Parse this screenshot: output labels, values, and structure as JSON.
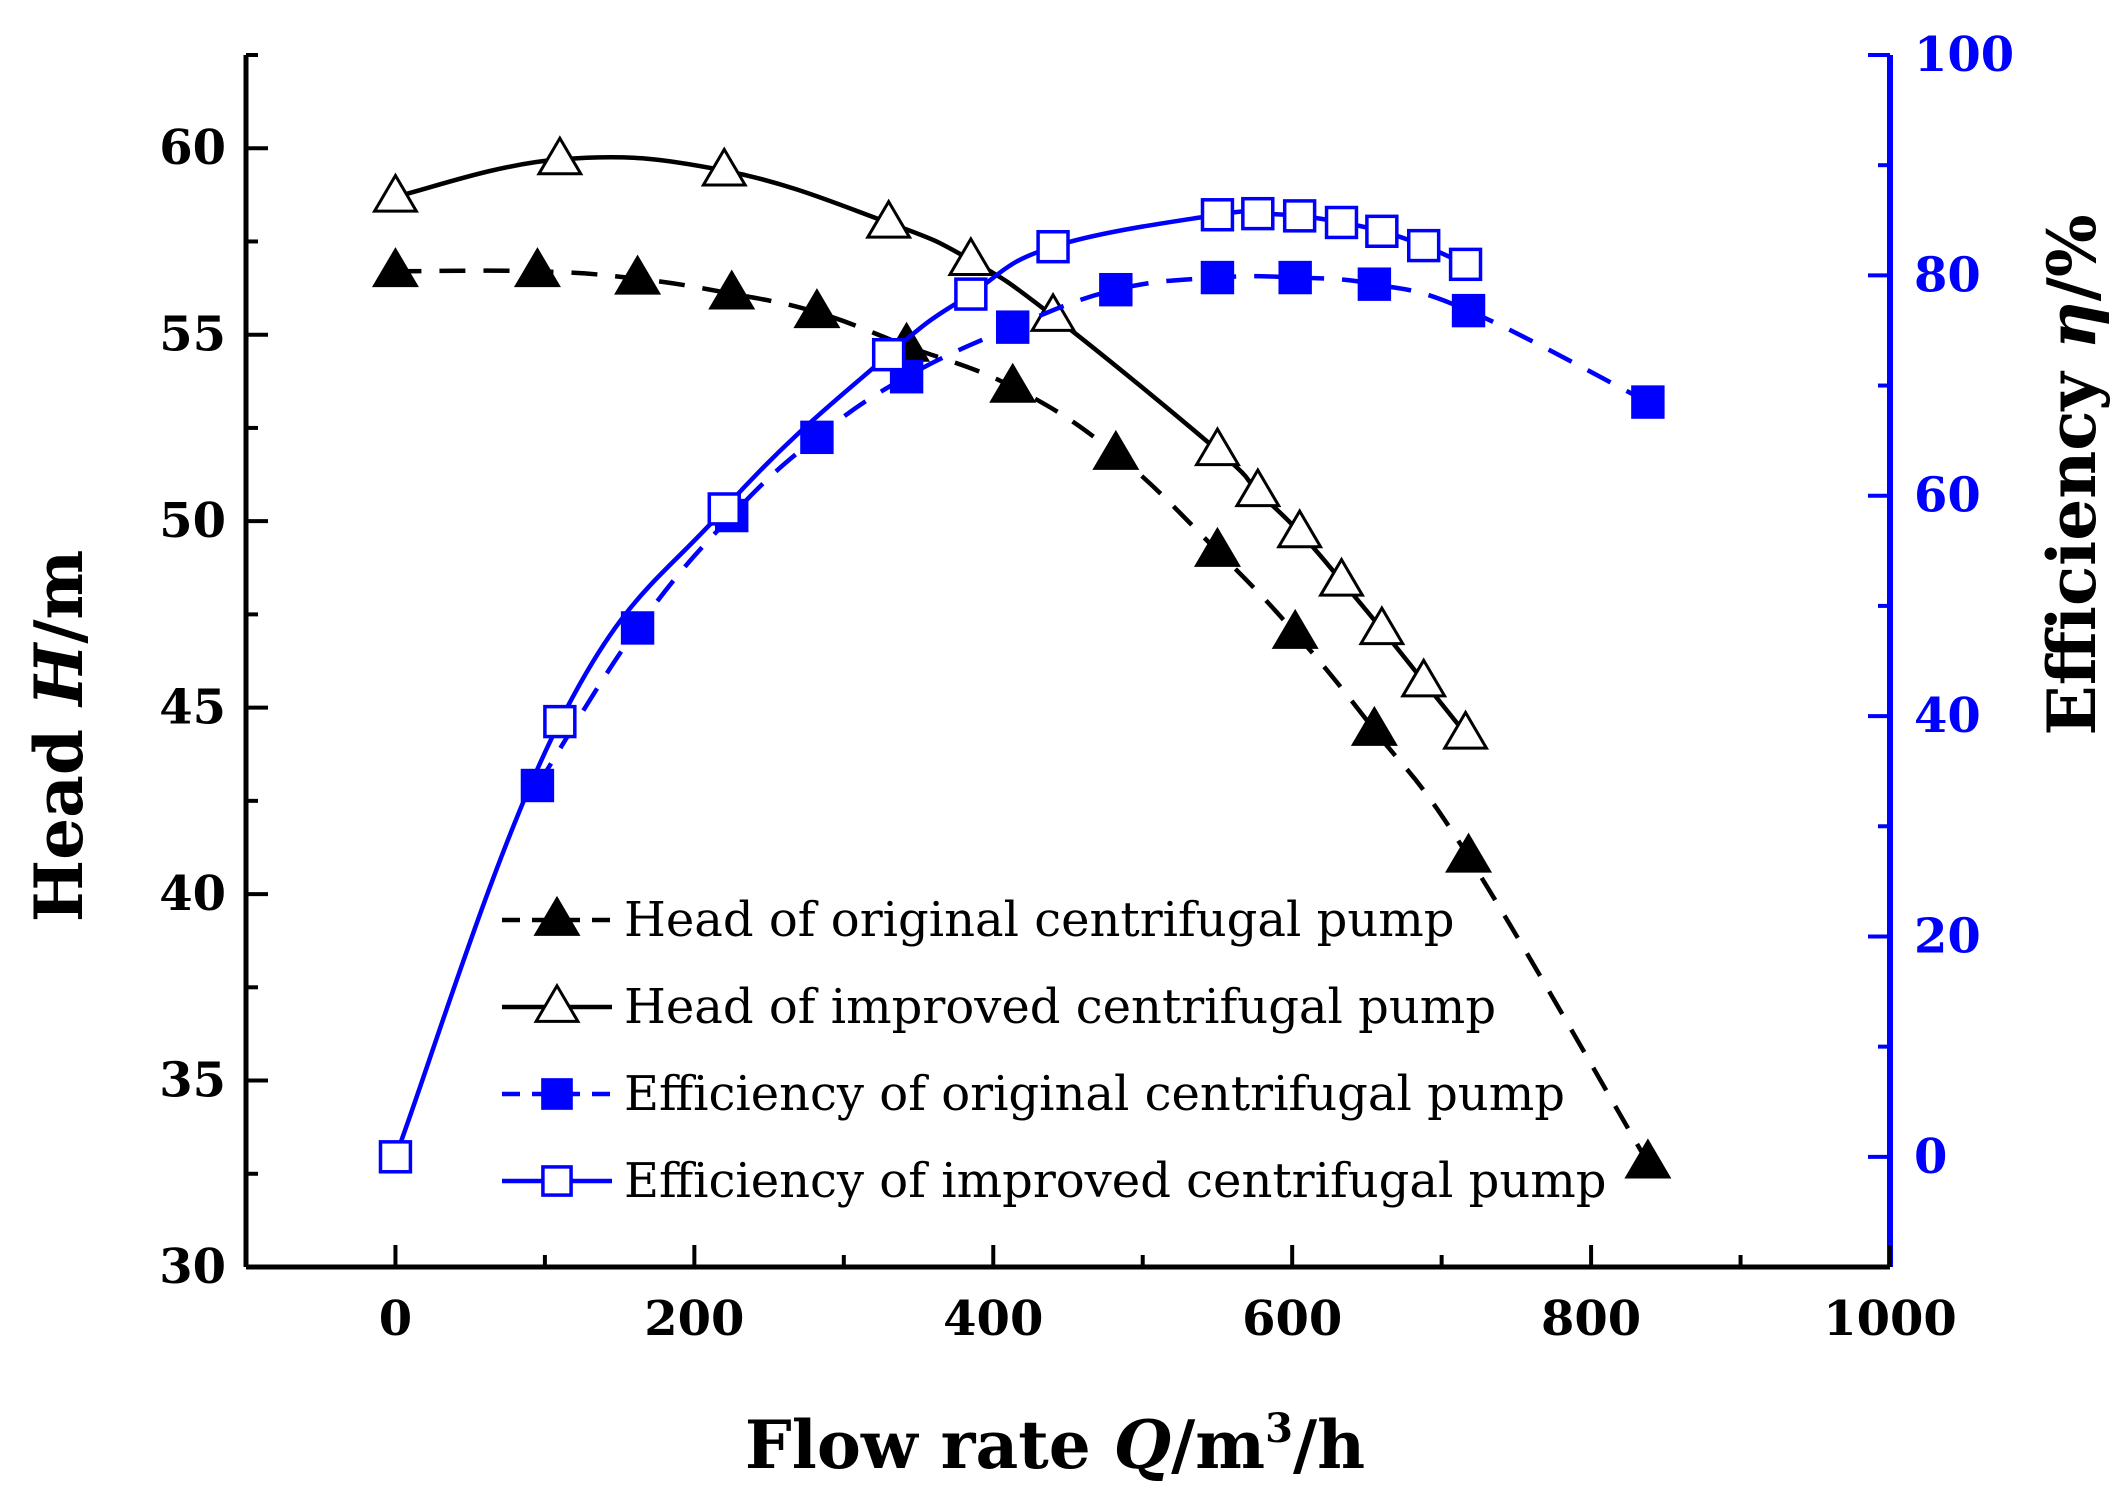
{
  "chart_data": {
    "type": "line",
    "x_axis": {
      "label_prefix": "Flow rate ",
      "label_var": "Q",
      "label_unit": "/m",
      "label_sup": "3",
      "label_suffix": "/h",
      "range": [
        -100,
        1000
      ],
      "ticks": [
        0,
        200,
        400,
        600,
        800,
        1000
      ],
      "tick_labels": [
        "0",
        "200",
        "400",
        "600",
        "800",
        "1000"
      ]
    },
    "y_left": {
      "label_prefix": "Head ",
      "label_var": "H",
      "label_suffix": "/m",
      "range": [
        30,
        62.5
      ],
      "ticks": [
        30,
        35,
        40,
        45,
        50,
        55,
        60
      ],
      "tick_labels": [
        "30",
        "35",
        "40",
        "45",
        "50",
        "55",
        "60"
      ],
      "color": "#000000"
    },
    "y_right": {
      "label_prefix": "Efficiency ",
      "label_var": "η",
      "label_suffix": "/%",
      "range": [
        -10,
        100
      ],
      "ticks": [
        0,
        20,
        40,
        60,
        80,
        100
      ],
      "tick_labels": [
        "0",
        "20",
        "40",
        "60",
        "80",
        "100"
      ],
      "color": "#0000ff"
    },
    "series": [
      {
        "name": "Head of original centrifugal pump",
        "axis": "left",
        "color": "#000000",
        "marker": "triangle",
        "filled": true,
        "dashed": true,
        "x": [
          0,
          95,
          162,
          225,
          282,
          342,
          413,
          482,
          550,
          602,
          655,
          718,
          838
        ],
        "y": [
          56.7,
          56.7,
          56.5,
          56.1,
          55.6,
          54.7,
          53.6,
          51.8,
          49.2,
          47.0,
          44.4,
          41.0,
          32.8
        ]
      },
      {
        "name": "Head of improved centrifugal pump",
        "axis": "left",
        "color": "#000000",
        "marker": "triangle",
        "filled": false,
        "dashed": false,
        "x": [
          0,
          110,
          220,
          330,
          385,
          440,
          550,
          577,
          605,
          633,
          660,
          688,
          716
        ],
        "y": [
          58.7,
          59.7,
          59.4,
          58.0,
          57.0,
          55.5,
          51.9,
          50.8,
          49.7,
          48.4,
          47.1,
          45.7,
          44.3
        ]
      },
      {
        "name": "Efficiency of original centrifugal pump",
        "axis": "right",
        "color": "#0000ff",
        "marker": "square",
        "filled": true,
        "dashed": true,
        "x": [
          95,
          162,
          225,
          282,
          342,
          413,
          482,
          550,
          602,
          655,
          718,
          838
        ],
        "y": [
          33.7,
          48.0,
          58.2,
          65.3,
          70.8,
          75.3,
          78.7,
          79.8,
          79.8,
          79.2,
          76.8,
          68.5
        ]
      },
      {
        "name": "Efficiency of improved centrifugal pump",
        "axis": "right",
        "color": "#0000ff",
        "marker": "square",
        "filled": false,
        "dashed": false,
        "x": [
          0,
          110,
          220,
          330,
          385,
          440,
          550,
          577,
          605,
          633,
          660,
          688,
          716
        ],
        "y": [
          0,
          39.5,
          58.8,
          72.8,
          78.3,
          82.6,
          85.5,
          85.6,
          85.4,
          84.8,
          84.0,
          82.7,
          81.0
        ]
      }
    ],
    "legend_position": "bottom-center"
  }
}
